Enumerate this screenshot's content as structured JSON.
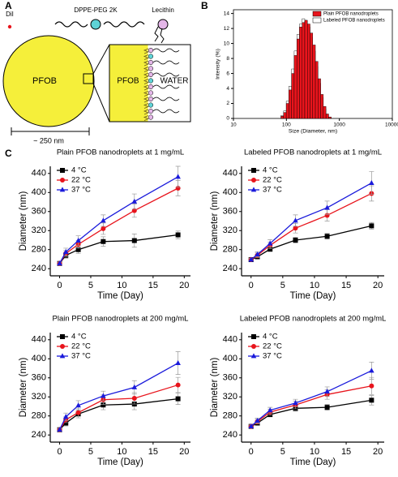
{
  "panel_labels": [
    "A",
    "B",
    "C"
  ],
  "diagram": {
    "dil": "DiI",
    "peg": "DPPE-PEG 2K",
    "lecithin": "Lecithin",
    "core": "PFOB",
    "zoom_core": "PFOB",
    "water": "WATER",
    "scale": "~ 250 nm"
  },
  "chart_data": [
    {
      "type": "histogram",
      "xlabel": "Size (Diameter, nm)",
      "ylabel": "Intensity (%)",
      "xscale": "log",
      "xlim": [
        10,
        10000
      ],
      "xticks": [
        10,
        100,
        1000,
        10000
      ],
      "ylim": [
        0,
        14.5
      ],
      "yticks": [
        0,
        2,
        4,
        6,
        8,
        10,
        12,
        14
      ],
      "legend": "upper right",
      "bins": [
        78.8,
        88.4,
        99.2,
        111.3,
        124.9,
        140.2,
        157.3,
        176.5,
        198.0,
        222.2,
        249.3,
        279.7,
        313.9,
        352.2,
        395.2,
        443.4,
        497.5,
        558.2,
        626.4,
        702.8
      ],
      "series": [
        {
          "name": "Labeled PFOB nanodroplets",
          "color": "#ffffff",
          "values": [
            0.4,
            1.0,
            2.3,
            4.3,
            6.6,
            9.0,
            11.2,
            12.6,
            13.3,
            13.0,
            12.2,
            10.8,
            9.0,
            6.9,
            4.7,
            2.8,
            1.3,
            0.5,
            0.1
          ]
        },
        {
          "name": "Plain PFOB  nanodroplets",
          "color": "#e8141c",
          "values": [
            0.3,
            0.8,
            2.0,
            3.8,
            6.0,
            8.4,
            10.6,
            12.2,
            12.8,
            13.1,
            12.6,
            11.4,
            9.8,
            7.6,
            5.3,
            3.2,
            1.6,
            0.6,
            0.2
          ]
        }
      ]
    },
    {
      "type": "line",
      "title": "Plain PFOB nanodroplets at 1 mg/mL",
      "xlabel": "Time (Day)",
      "ylabel": "Diameter (nm)",
      "x": [
        0,
        1,
        3,
        7,
        12,
        19
      ],
      "xlim": [
        -1.5,
        21
      ],
      "xticks": [
        0,
        5,
        10,
        15,
        20
      ],
      "ylim": [
        225,
        455
      ],
      "yticks": [
        240,
        280,
        320,
        360,
        400,
        440
      ],
      "legend": "upper left",
      "series": [
        {
          "name": "4 °C",
          "color": "#000000",
          "marker": "square",
          "values": [
            251,
            268,
            280,
            297,
            299,
            311
          ],
          "errors": [
            3,
            6,
            8,
            10,
            14,
            8
          ]
        },
        {
          "name": "22 °C",
          "color": "#e8141c",
          "marker": "circle",
          "values": [
            251,
            272,
            291,
            324,
            362,
            409
          ],
          "errors": [
            3,
            6,
            8,
            12,
            14,
            16
          ]
        },
        {
          "name": "37 °C",
          "color": "#1a1adb",
          "marker": "triangle",
          "values": [
            251,
            275,
            299,
            341,
            381,
            433
          ],
          "errors": [
            3,
            8,
            10,
            12,
            16,
            22
          ]
        }
      ]
    },
    {
      "type": "line",
      "title": "Labeled PFOB nanodroplets at 1 mg/mL",
      "xlabel": "Time (Day)",
      "ylabel": "Diameter (nm)",
      "x": [
        0,
        1,
        3,
        7,
        12,
        19
      ],
      "xlim": [
        -1.5,
        21
      ],
      "xticks": [
        0,
        5,
        10,
        15,
        20
      ],
      "ylim": [
        225,
        455
      ],
      "yticks": [
        240,
        280,
        320,
        360,
        400,
        440
      ],
      "legend": "upper left",
      "series": [
        {
          "name": "4 °C",
          "color": "#000000",
          "marker": "square",
          "values": [
            259,
            265,
            281,
            300,
            308,
            330
          ],
          "errors": [
            3,
            4,
            5,
            6,
            6,
            7
          ]
        },
        {
          "name": "22 °C",
          "color": "#e8141c",
          "marker": "circle",
          "values": [
            259,
            268,
            289,
            325,
            352,
            398
          ],
          "errors": [
            3,
            5,
            7,
            10,
            12,
            16
          ]
        },
        {
          "name": "37 °C",
          "color": "#1a1adb",
          "marker": "triangle",
          "values": [
            259,
            270,
            293,
            341,
            368,
            420
          ],
          "errors": [
            3,
            5,
            8,
            12,
            14,
            24
          ]
        }
      ]
    },
    {
      "type": "line",
      "title": "Plain PFOB nanodroplets at 200 mg/mL",
      "xlabel": "Time (Day)",
      "ylabel": "Diameter (nm)",
      "x": [
        0,
        1,
        3,
        7,
        12,
        19
      ],
      "xlim": [
        -1.5,
        21
      ],
      "xticks": [
        0,
        5,
        10,
        15,
        20
      ],
      "ylim": [
        225,
        455
      ],
      "yticks": [
        240,
        280,
        320,
        360,
        400,
        440
      ],
      "legend": "upper left",
      "series": [
        {
          "name": "4 °C",
          "color": "#000000",
          "marker": "square",
          "values": [
            251,
            265,
            284,
            303,
            305,
            316
          ],
          "errors": [
            3,
            6,
            8,
            10,
            12,
            12
          ]
        },
        {
          "name": "22 °C",
          "color": "#e8141c",
          "marker": "circle",
          "values": [
            251,
            272,
            287,
            314,
            317,
            345
          ],
          "errors": [
            3,
            6,
            8,
            10,
            12,
            16
          ]
        },
        {
          "name": "37 °C",
          "color": "#1a1adb",
          "marker": "triangle",
          "values": [
            251,
            278,
            302,
            322,
            340,
            391
          ],
          "errors": [
            3,
            8,
            10,
            10,
            14,
            24
          ]
        }
      ]
    },
    {
      "type": "line",
      "title": "Labeled PFOB nanodroplets at 200 mg/mL",
      "xlabel": "Time (Day)",
      "ylabel": "Diameter (nm)",
      "x": [
        0,
        1,
        3,
        7,
        12,
        19
      ],
      "xlim": [
        -1.5,
        21
      ],
      "xticks": [
        0,
        5,
        10,
        15,
        20
      ],
      "ylim": [
        225,
        455
      ],
      "yticks": [
        240,
        280,
        320,
        360,
        400,
        440
      ],
      "legend": "upper left",
      "series": [
        {
          "name": "4 °C",
          "color": "#000000",
          "marker": "square",
          "values": [
            258,
            265,
            283,
            296,
            298,
            313
          ],
          "errors": [
            3,
            4,
            5,
            6,
            6,
            10
          ]
        },
        {
          "name": "22 °C",
          "color": "#e8141c",
          "marker": "circle",
          "values": [
            258,
            268,
            288,
            303,
            325,
            343
          ],
          "errors": [
            3,
            5,
            6,
            8,
            10,
            18
          ]
        },
        {
          "name": "37 °C",
          "color": "#1a1adb",
          "marker": "triangle",
          "values": [
            258,
            270,
            292,
            307,
            331,
            375
          ],
          "errors": [
            3,
            5,
            6,
            8,
            10,
            18
          ]
        }
      ]
    }
  ]
}
